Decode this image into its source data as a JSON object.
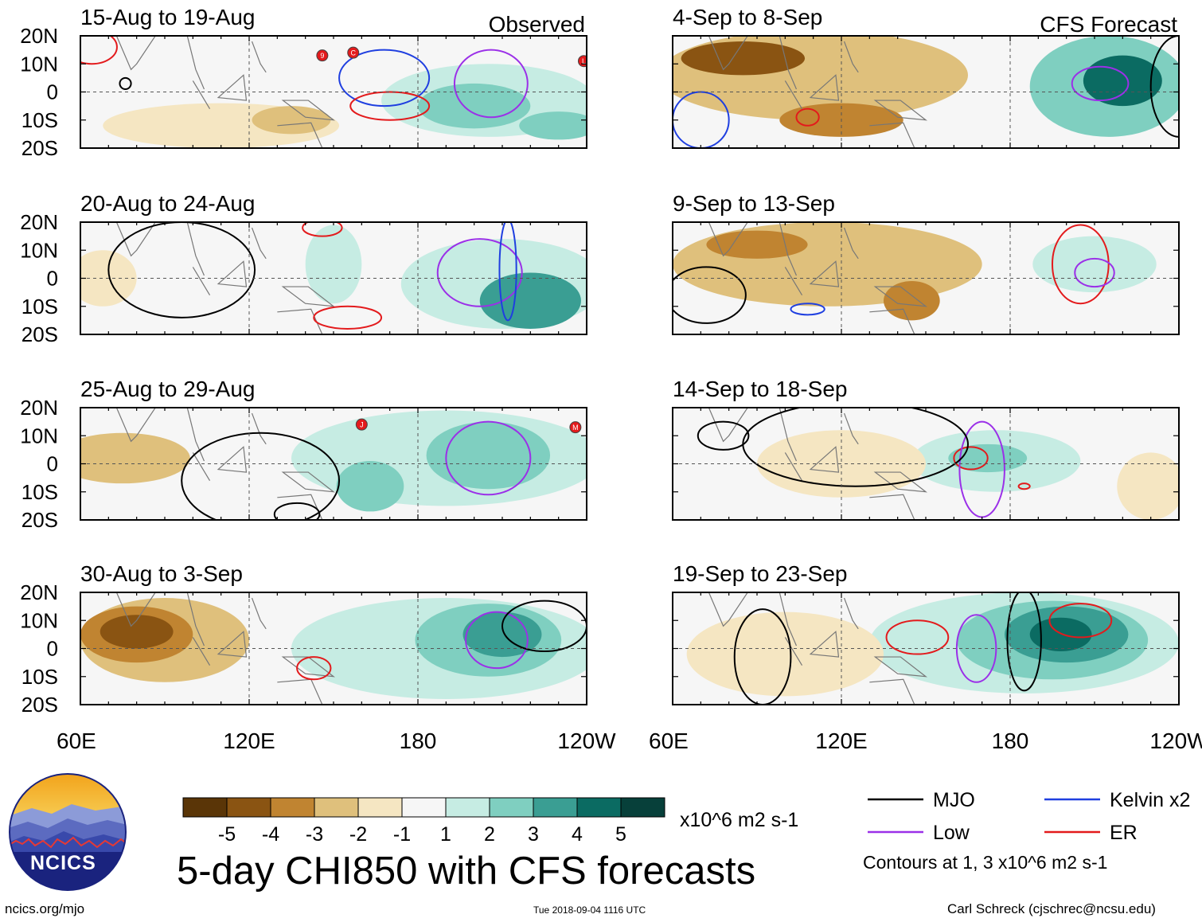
{
  "figure": {
    "title": "5-day CHI850 with CFS forecasts",
    "units": "x10^6 m2 s-1",
    "website": "ncics.org/mjo",
    "timestamp": "Tue 2018-09-04 1116 UTC",
    "author": "Carl Schreck (cjschrec@ncsu.edu)",
    "logo_text": "NCICS",
    "contour_note": "Contours at 1, 3 x10^6 m2 s-1"
  },
  "chart_data": {
    "type": "heatmap",
    "variable": "CHI850 anomaly",
    "lat_ticks": [
      "20N",
      "10N",
      "0",
      "10S",
      "20S"
    ],
    "lat_values": [
      20,
      10,
      0,
      -10,
      -20
    ],
    "lon_ticks": [
      "60E",
      "120E",
      "180",
      "120W"
    ],
    "lon_values": [
      60,
      120,
      180,
      240
    ],
    "xlim": [
      60,
      240
    ],
    "ylim": [
      -20,
      20
    ],
    "column_headers": [
      "Observed",
      "CFS Forecast"
    ],
    "colorbar": {
      "labels": [
        "-5",
        "-4",
        "-3",
        "-2",
        "-1",
        "1",
        "2",
        "3",
        "4",
        "5"
      ],
      "colors": [
        "#5a3507",
        "#8a5412",
        "#c08431",
        "#dfc07c",
        "#f5e6c2",
        "#f6f6f6",
        "#c6ece3",
        "#7fcfc0",
        "#3a9e93",
        "#0b6b62",
        "#07403a"
      ]
    },
    "legend": [
      {
        "label": "MJO",
        "color": "#000000"
      },
      {
        "label": "Kelvin x2",
        "color": "#1f3fe0"
      },
      {
        "label": "Low",
        "color": "#9b30e8"
      },
      {
        "label": "ER",
        "color": "#e31a1c"
      }
    ],
    "panels": [
      {
        "title": "15-Aug to 19-Aug",
        "header": "Observed",
        "col": 0,
        "row": 0,
        "blobs": [
          {
            "lon": 205,
            "lat": -3,
            "rlon": 38,
            "rlat": 13,
            "level": 1
          },
          {
            "lon": 200,
            "lat": -5,
            "rlon": 20,
            "rlat": 8,
            "level": 2
          },
          {
            "lon": 230,
            "lat": -12,
            "rlon": 14,
            "rlat": 5,
            "level": 2
          },
          {
            "lon": 110,
            "lat": -12,
            "rlon": 42,
            "rlat": 8,
            "level": -1
          },
          {
            "lon": 135,
            "lat": -10,
            "rlon": 14,
            "rlat": 5,
            "level": -2
          }
        ],
        "contours": [
          {
            "wave": "Kelvin x2",
            "lon": 168,
            "lat": 5,
            "rlon": 16,
            "rlat": 10
          },
          {
            "wave": "Low",
            "lon": 206,
            "lat": 3,
            "rlon": 13,
            "rlat": 12
          },
          {
            "wave": "ER",
            "lon": 170,
            "lat": -5,
            "rlon": 14,
            "rlat": 5
          },
          {
            "wave": "ER",
            "lon": 64,
            "lat": 16,
            "rlon": 9,
            "rlat": 6
          },
          {
            "wave": "MJO",
            "lon": 76,
            "lat": 3,
            "rlon": 2,
            "rlat": 2
          }
        ],
        "storms": [
          {
            "lon": 146,
            "lat": 13,
            "label": "9"
          },
          {
            "lon": 157,
            "lat": 14,
            "label": "C"
          },
          {
            "lon": 239,
            "lat": 11,
            "label": "L"
          }
        ]
      },
      {
        "title": "4-Sep to 8-Sep",
        "header": "CFS Forecast",
        "col": 1,
        "row": 0,
        "blobs": [
          {
            "lon": 110,
            "lat": 6,
            "rlon": 55,
            "rlat": 16,
            "level": -2
          },
          {
            "lon": 85,
            "lat": 12,
            "rlon": 22,
            "rlat": 6,
            "level": -4
          },
          {
            "lon": 120,
            "lat": -10,
            "rlon": 22,
            "rlat": 6,
            "level": -3
          },
          {
            "lon": 215,
            "lat": 2,
            "rlon": 28,
            "rlat": 18,
            "level": 2
          },
          {
            "lon": 220,
            "lat": 4,
            "rlon": 14,
            "rlat": 9,
            "level": 4
          }
        ],
        "contours": [
          {
            "wave": "Low",
            "lon": 212,
            "lat": 3,
            "rlon": 10,
            "rlat": 6
          },
          {
            "wave": "ER",
            "lon": 108,
            "lat": -9,
            "rlon": 4,
            "rlat": 3
          },
          {
            "wave": "Kelvin x2",
            "lon": 70,
            "lat": -10,
            "rlon": 10,
            "rlat": 10
          },
          {
            "wave": "MJO",
            "lon": 240,
            "lat": 2,
            "rlon": 10,
            "rlat": 18
          }
        ],
        "storms": []
      },
      {
        "title": "20-Aug to 24-Aug",
        "header": "",
        "col": 0,
        "row": 1,
        "blobs": [
          {
            "lon": 210,
            "lat": -2,
            "rlon": 36,
            "rlat": 16,
            "level": 1
          },
          {
            "lon": 220,
            "lat": -8,
            "rlon": 18,
            "rlat": 10,
            "level": 3
          },
          {
            "lon": 150,
            "lat": 5,
            "rlon": 10,
            "rlat": 14,
            "level": 1
          },
          {
            "lon": 68,
            "lat": 0,
            "rlon": 12,
            "rlat": 10,
            "level": -1
          }
        ],
        "contours": [
          {
            "wave": "Low",
            "lon": 202,
            "lat": 2,
            "rlon": 15,
            "rlat": 12
          },
          {
            "wave": "Kelvin x2",
            "lon": 212,
            "lat": 3,
            "rlon": 3,
            "rlat": 18
          },
          {
            "wave": "ER",
            "lon": 155,
            "lat": -14,
            "rlon": 12,
            "rlat": 4
          },
          {
            "wave": "ER",
            "lon": 146,
            "lat": 18,
            "rlon": 7,
            "rlat": 3
          },
          {
            "wave": "MJO",
            "lon": 96,
            "lat": 3,
            "rlon": 26,
            "rlat": 17
          }
        ],
        "storms": []
      },
      {
        "title": "9-Sep to 13-Sep",
        "header": "",
        "col": 1,
        "row": 1,
        "blobs": [
          {
            "lon": 115,
            "lat": 5,
            "rlon": 55,
            "rlat": 15,
            "level": -2
          },
          {
            "lon": 90,
            "lat": 12,
            "rlon": 18,
            "rlat": 5,
            "level": -3
          },
          {
            "lon": 145,
            "lat": -8,
            "rlon": 10,
            "rlat": 7,
            "level": -3
          },
          {
            "lon": 210,
            "lat": 5,
            "rlon": 22,
            "rlat": 10,
            "level": 1
          }
        ],
        "contours": [
          {
            "wave": "ER",
            "lon": 205,
            "lat": 5,
            "rlon": 10,
            "rlat": 14
          },
          {
            "wave": "Low",
            "lon": 210,
            "lat": 2,
            "rlon": 7,
            "rlat": 5
          },
          {
            "wave": "Kelvin x2",
            "lon": 108,
            "lat": -11,
            "rlon": 6,
            "rlat": 2
          },
          {
            "wave": "MJO",
            "lon": 72,
            "lat": -6,
            "rlon": 14,
            "rlat": 10
          }
        ],
        "storms": []
      },
      {
        "title": "25-Aug to 29-Aug",
        "header": "",
        "col": 0,
        "row": 2,
        "blobs": [
          {
            "lon": 190,
            "lat": 2,
            "rlon": 55,
            "rlat": 17,
            "level": 1
          },
          {
            "lon": 205,
            "lat": 3,
            "rlon": 22,
            "rlat": 12,
            "level": 2
          },
          {
            "lon": 163,
            "lat": -8,
            "rlon": 12,
            "rlat": 9,
            "level": 2
          },
          {
            "lon": 75,
            "lat": 2,
            "rlon": 24,
            "rlat": 9,
            "level": -2
          }
        ],
        "contours": [
          {
            "wave": "Low",
            "lon": 205,
            "lat": 2,
            "rlon": 15,
            "rlat": 13
          },
          {
            "wave": "MJO",
            "lon": 124,
            "lat": -6,
            "rlon": 28,
            "rlat": 17
          },
          {
            "wave": "MJO",
            "lon": 137,
            "lat": -18,
            "rlon": 8,
            "rlat": 4
          }
        ],
        "storms": [
          {
            "lon": 160,
            "lat": 14,
            "label": "J"
          },
          {
            "lon": 236,
            "lat": 13,
            "label": "M"
          }
        ]
      },
      {
        "title": "14-Sep to 18-Sep",
        "header": "",
        "col": 1,
        "row": 2,
        "blobs": [
          {
            "lon": 175,
            "lat": 1,
            "rlon": 30,
            "rlat": 11,
            "level": 1
          },
          {
            "lon": 172,
            "lat": 2,
            "rlon": 14,
            "rlat": 5,
            "level": 2
          },
          {
            "lon": 120,
            "lat": 0,
            "rlon": 30,
            "rlat": 12,
            "level": -1
          },
          {
            "lon": 230,
            "lat": -8,
            "rlon": 12,
            "rlat": 12,
            "level": -1
          }
        ],
        "contours": [
          {
            "wave": "ER",
            "lon": 166,
            "lat": 2,
            "rlon": 6,
            "rlat": 4
          },
          {
            "wave": "ER",
            "lon": 185,
            "lat": -8,
            "rlon": 2,
            "rlat": 1
          },
          {
            "wave": "Low",
            "lon": 170,
            "lat": -2,
            "rlon": 8,
            "rlat": 17
          },
          {
            "wave": "MJO",
            "lon": 78,
            "lat": 10,
            "rlon": 9,
            "rlat": 5
          },
          {
            "wave": "MJO",
            "lon": 125,
            "lat": 7,
            "rlon": 40,
            "rlat": 15
          }
        ],
        "storms": []
      },
      {
        "title": "30-Aug to 3-Sep",
        "header": "",
        "col": 0,
        "row": 3,
        "blobs": [
          {
            "lon": 90,
            "lat": 3,
            "rlon": 30,
            "rlat": 15,
            "level": -2
          },
          {
            "lon": 80,
            "lat": 5,
            "rlon": 20,
            "rlat": 10,
            "level": -3
          },
          {
            "lon": 80,
            "lat": 6,
            "rlon": 13,
            "rlat": 6,
            "level": -4
          },
          {
            "lon": 190,
            "lat": 0,
            "rlon": 55,
            "rlat": 18,
            "level": 1
          },
          {
            "lon": 205,
            "lat": 3,
            "rlon": 26,
            "rlat": 13,
            "level": 2
          },
          {
            "lon": 210,
            "lat": 5,
            "rlon": 14,
            "rlat": 8,
            "level": 3
          }
        ],
        "contours": [
          {
            "wave": "Low",
            "lon": 208,
            "lat": 3,
            "rlon": 11,
            "rlat": 10
          },
          {
            "wave": "ER",
            "lon": 143,
            "lat": -7,
            "rlon": 6,
            "rlat": 4
          },
          {
            "wave": "MJO",
            "lon": 225,
            "lat": 8,
            "rlon": 15,
            "rlat": 9
          }
        ],
        "storms": []
      },
      {
        "title": "19-Sep to 23-Sep",
        "header": "",
        "col": 1,
        "row": 3,
        "blobs": [
          {
            "lon": 185,
            "lat": 2,
            "rlon": 55,
            "rlat": 18,
            "level": 1
          },
          {
            "lon": 195,
            "lat": 3,
            "rlon": 34,
            "rlat": 14,
            "level": 2
          },
          {
            "lon": 200,
            "lat": 5,
            "rlon": 22,
            "rlat": 10,
            "level": 3
          },
          {
            "lon": 198,
            "lat": 5,
            "rlon": 11,
            "rlat": 6,
            "level": 4
          },
          {
            "lon": 100,
            "lat": -2,
            "rlon": 35,
            "rlat": 15,
            "level": -1
          }
        ],
        "contours": [
          {
            "wave": "ER",
            "lon": 147,
            "lat": 4,
            "rlon": 11,
            "rlat": 6
          },
          {
            "wave": "ER",
            "lon": 205,
            "lat": 10,
            "rlon": 11,
            "rlat": 6
          },
          {
            "wave": "Low",
            "lon": 168,
            "lat": 0,
            "rlon": 7,
            "rlat": 12
          },
          {
            "wave": "MJO",
            "lon": 92,
            "lat": -3,
            "rlon": 10,
            "rlat": 17
          },
          {
            "wave": "MJO",
            "lon": 185,
            "lat": 3,
            "rlon": 6,
            "rlat": 18
          }
        ],
        "storms": []
      }
    ]
  }
}
